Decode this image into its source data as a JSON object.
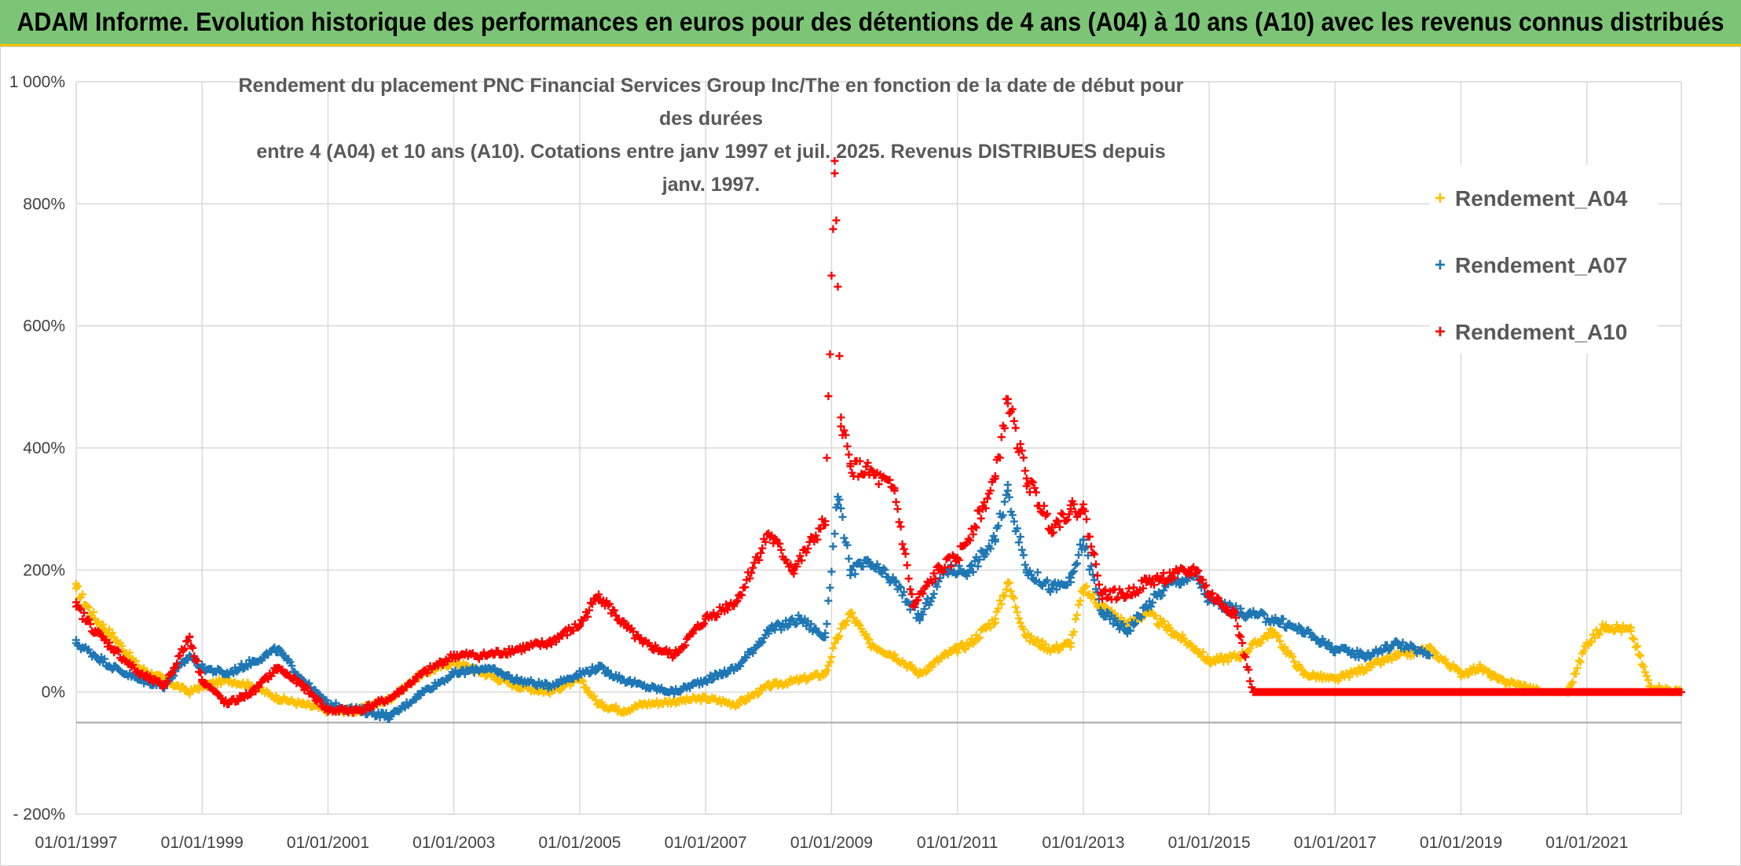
{
  "header": {
    "banner": "ADAM Informe. Evolution historique des performances en euros pour des détentions de 4 ans (A04) à 10 ans (A10) avec les revenus connus distribués"
  },
  "chart_data": {
    "type": "scatter",
    "title_line1": "Rendement du placement PNC Financial Services Group Inc/The en fonction de la date de début pour des durées",
    "title_line2": "entre 4 (A04) et 10 ans (A10). Cotations entre janv 1997 et juil. 2025. Revenus DISTRIBUES depuis janv. 1997.",
    "xlabel": "",
    "ylabel": "",
    "xlim": [
      1997.0,
      2022.5
    ],
    "ylim": [
      -200,
      1000
    ],
    "y_ticks": [
      -200,
      0,
      200,
      400,
      600,
      800,
      1000
    ],
    "y_tick_labels": [
      "- 200%",
      "0%",
      "200%",
      "400%",
      "600%",
      "800%",
      "1 000%"
    ],
    "x_ticks": [
      1997,
      1999,
      2001,
      2003,
      2005,
      2007,
      2009,
      2011,
      2013,
      2015,
      2017,
      2019,
      2021
    ],
    "x_tick_labels": [
      "01/01/1997",
      "01/01/1999",
      "01/01/2001",
      "01/01/2003",
      "01/01/2005",
      "01/01/2007",
      "01/01/2009",
      "01/01/2011",
      "01/01/2013",
      "01/01/2015",
      "01/01/2017",
      "01/01/2019",
      "01/01/2021"
    ],
    "baseline_y": -50,
    "grid": true,
    "legend_position": "top-right",
    "marker": "+",
    "series": [
      {
        "name": "Rendement_A04",
        "color": "#ffc000",
        "x": [
          1997.0,
          1997.3,
          1997.6,
          1998.0,
          1998.4,
          1998.8,
          1999.0,
          1999.4,
          1999.8,
          2000.2,
          2000.6,
          2001.0,
          2001.5,
          2002.0,
          2002.5,
          2003.0,
          2003.5,
          2004.0,
          2004.5,
          2005.0,
          2005.3,
          2005.7,
          2006.0,
          2006.5,
          2007.0,
          2007.5,
          2008.0,
          2008.5,
          2008.9,
          2009.1,
          2009.3,
          2009.6,
          2010.0,
          2010.4,
          2010.8,
          2011.2,
          2011.6,
          2011.8,
          2012.1,
          2012.5,
          2012.8,
          2013.0,
          2013.3,
          2013.7,
          2014.0,
          2014.4,
          2014.8,
          2015.0,
          2015.5,
          2016.0,
          2016.5,
          2017.0,
          2017.5,
          2018.0,
          2018.5,
          2019.0,
          2019.3,
          2019.6,
          2020.0,
          2020.3,
          2020.7,
          2021.0,
          2021.3,
          2021.7,
          2022.0,
          2022.5
        ],
        "y": [
          170,
          120,
          90,
          40,
          20,
          0,
          10,
          20,
          10,
          -10,
          -20,
          -30,
          -30,
          -10,
          30,
          50,
          30,
          10,
          0,
          20,
          -20,
          -30,
          -20,
          -15,
          -10,
          -20,
          10,
          20,
          30,
          90,
          130,
          80,
          60,
          30,
          60,
          80,
          120,
          180,
          90,
          70,
          80,
          170,
          140,
          110,
          130,
          100,
          70,
          50,
          60,
          100,
          30,
          20,
          40,
          60,
          70,
          30,
          40,
          20,
          10,
          0,
          0,
          80,
          110,
          100,
          10,
          0
        ]
      },
      {
        "name": "Rendement_A07",
        "color": "#1f77b4",
        "x": [
          1997.0,
          1997.3,
          1997.6,
          1998.0,
          1998.4,
          1998.8,
          1999.0,
          1999.4,
          1999.8,
          2000.2,
          2000.6,
          2001.0,
          2001.5,
          2002.0,
          2002.5,
          2003.0,
          2003.5,
          2004.0,
          2004.5,
          2005.0,
          2005.3,
          2005.7,
          2006.0,
          2006.5,
          2007.0,
          2007.5,
          2008.0,
          2008.5,
          2008.9,
          2009.1,
          2009.3,
          2009.6,
          2010.0,
          2010.4,
          2010.8,
          2011.2,
          2011.6,
          2011.8,
          2012.1,
          2012.5,
          2012.8,
          2013.0,
          2013.3,
          2013.7,
          2014.0,
          2014.4,
          2014.8,
          2015.0,
          2015.5,
          2016.0,
          2016.5,
          2017.0,
          2017.5,
          2018.0,
          2018.5
        ],
        "y": [
          80,
          60,
          40,
          20,
          10,
          60,
          40,
          30,
          50,
          70,
          20,
          -20,
          -30,
          -40,
          0,
          30,
          40,
          20,
          10,
          30,
          40,
          20,
          10,
          0,
          20,
          40,
          100,
          120,
          90,
          320,
          200,
          210,
          180,
          120,
          200,
          200,
          250,
          330,
          200,
          170,
          180,
          250,
          130,
          100,
          140,
          180,
          190,
          150,
          130,
          120,
          100,
          70,
          60,
          80,
          60
        ]
      },
      {
        "name": "Rendement_A10",
        "color": "#ff0000",
        "x": [
          1997.0,
          1997.3,
          1997.6,
          1998.0,
          1998.4,
          1998.8,
          1999.0,
          1999.4,
          1999.8,
          2000.2,
          2000.6,
          2001.0,
          2001.5,
          2002.0,
          2002.5,
          2003.0,
          2003.5,
          2004.0,
          2004.5,
          2005.0,
          2005.3,
          2005.7,
          2006.0,
          2006.5,
          2007.0,
          2007.5,
          2008.0,
          2008.4,
          2008.9,
          2009.05,
          2009.15,
          2009.3,
          2009.6,
          2010.0,
          2010.3,
          2010.7,
          2011.0,
          2011.4,
          2011.6,
          2011.8,
          2012.1,
          2012.5,
          2012.8,
          2013.0,
          2013.3,
          2013.7,
          2014.0,
          2014.4,
          2014.8,
          2015.0,
          2015.4,
          2015.7,
          2016.0,
          2017.0,
          2018.0,
          2019.0,
          2020.0,
          2021.0,
          2022.0,
          2022.5
        ],
        "y": [
          140,
          100,
          70,
          30,
          10,
          90,
          20,
          -20,
          0,
          40,
          10,
          -30,
          -30,
          -10,
          30,
          60,
          60,
          70,
          80,
          110,
          160,
          110,
          80,
          60,
          120,
          150,
          260,
          200,
          280,
          850,
          450,
          370,
          360,
          330,
          140,
          200,
          220,
          300,
          350,
          480,
          350,
          270,
          300,
          300,
          160,
          160,
          180,
          190,
          200,
          160,
          130,
          0,
          0,
          0,
          0,
          0,
          0,
          0,
          0,
          0
        ]
      }
    ]
  }
}
